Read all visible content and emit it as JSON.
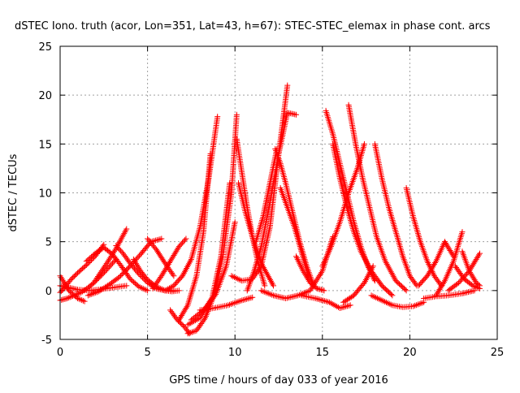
{
  "chart_data": {
    "type": "scatter",
    "title": "dSTEC Iono. truth (acor, Lon=351, Lat=43, h=67): STEC-STEC_elemax in phase cont. arcs",
    "xlabel": "GPS time / hours of day 033 of year 2016",
    "ylabel": "dSTEC  / TECUs",
    "xlim": [
      0,
      25
    ],
    "ylim": [
      -5,
      25
    ],
    "xticks": [
      0,
      5,
      10,
      15,
      20,
      25
    ],
    "yticks": [
      -5,
      0,
      5,
      10,
      15,
      20,
      25
    ],
    "grid": true,
    "marker": "+",
    "color": "#ff0000",
    "series": [
      {
        "x": [
          0.0,
          0.3,
          0.6,
          1.0,
          1.5,
          2.0,
          2.5
        ],
        "y": [
          -0.2,
          0.4,
          1.1,
          1.8,
          2.6,
          3.5,
          4.7
        ]
      },
      {
        "x": [
          0.0,
          0.5,
          1.0,
          1.4
        ],
        "y": [
          1.5,
          0.0,
          -0.8,
          -1.1
        ]
      },
      {
        "x": [
          0.0,
          0.4,
          0.8,
          1.2,
          1.6,
          2.0,
          2.6,
          3.2
        ],
        "y": [
          -1.0,
          -0.8,
          -0.5,
          -0.2,
          0.3,
          0.9,
          2.0,
          3.2
        ]
      },
      {
        "x": [
          0.0,
          0.5,
          1.0,
          1.6,
          2.2,
          3.0,
          3.8
        ],
        "y": [
          0.5,
          0.3,
          0.1,
          0.0,
          0.1,
          0.3,
          0.5
        ]
      },
      {
        "x": [
          1.5,
          2.0,
          2.5,
          3.0,
          3.5,
          4.0,
          4.5,
          5.0
        ],
        "y": [
          3.0,
          3.8,
          4.4,
          3.7,
          2.5,
          1.2,
          0.4,
          0.0
        ]
      },
      {
        "x": [
          2.0,
          2.6,
          3.2,
          3.8
        ],
        "y": [
          1.0,
          2.6,
          4.3,
          6.3
        ]
      },
      {
        "x": [
          3.2,
          3.6,
          4.0,
          4.5,
          5.0,
          5.5,
          6.0,
          6.5
        ],
        "y": [
          4.6,
          3.8,
          2.8,
          1.7,
          0.8,
          0.2,
          0.0,
          0.0
        ]
      },
      {
        "x": [
          1.6,
          2.2,
          2.8,
          3.4,
          4.0,
          4.6,
          5.2,
          5.8
        ],
        "y": [
          -0.5,
          -0.1,
          0.6,
          1.4,
          2.5,
          3.7,
          5.0,
          5.3
        ]
      },
      {
        "x": [
          4.2,
          4.6,
          5.0,
          5.5,
          6.0,
          6.4,
          6.8
        ],
        "y": [
          3.2,
          2.0,
          1.1,
          0.4,
          0.0,
          -0.1,
          0.0
        ]
      },
      {
        "x": [
          5.0,
          5.5,
          6.0,
          6.5
        ],
        "y": [
          5.3,
          4.2,
          2.8,
          1.5
        ]
      },
      {
        "x": [
          5.3,
          5.8,
          6.3,
          6.8,
          7.2
        ],
        "y": [
          0.2,
          1.5,
          3.0,
          4.5,
          5.3
        ]
      },
      {
        "x": [
          6.0,
          6.5,
          7.0,
          7.5,
          8.0,
          8.5,
          9.0
        ],
        "y": [
          0.0,
          0.5,
          1.5,
          3.2,
          6.5,
          11.5,
          17.8
        ]
      },
      {
        "x": [
          6.3,
          6.7,
          7.1,
          7.4
        ],
        "y": [
          -2.0,
          -3.0,
          -3.7,
          -4.4
        ]
      },
      {
        "x": [
          7.3,
          7.8,
          8.3,
          8.8,
          9.3,
          9.8,
          10.1
        ],
        "y": [
          -4.4,
          -4.1,
          -2.8,
          -0.5,
          3.5,
          10.0,
          18.0
        ]
      },
      {
        "x": [
          6.8,
          7.3,
          7.8,
          8.2,
          8.6
        ],
        "y": [
          -3.0,
          -1.5,
          1.5,
          6.0,
          14.0
        ]
      },
      {
        "x": [
          7.3,
          8.0,
          8.7,
          9.2,
          9.7
        ],
        "y": [
          -3.5,
          -2.8,
          -0.7,
          3.5,
          11.0
        ]
      },
      {
        "x": [
          7.5,
          8.2,
          8.9,
          9.5,
          10.0
        ],
        "y": [
          -3.0,
          -2.0,
          -0.4,
          2.5,
          7.0
        ]
      },
      {
        "x": [
          8.0,
          8.8,
          9.6,
          10.4,
          11.0
        ],
        "y": [
          -2.0,
          -1.8,
          -1.5,
          -1.0,
          -0.7
        ]
      },
      {
        "x": [
          10.1,
          10.4,
          10.7,
          11.0,
          11.3,
          11.7
        ],
        "y": [
          15.5,
          12.0,
          8.5,
          5.5,
          3.0,
          0.5
        ]
      },
      {
        "x": [
          10.2,
          10.6,
          11.0,
          11.5,
          12.2
        ],
        "y": [
          11.0,
          8.0,
          5.5,
          2.8,
          0.5
        ]
      },
      {
        "x": [
          9.8,
          10.4,
          11.0,
          11.5,
          12.0,
          12.5,
          13.0
        ],
        "y": [
          1.5,
          1.0,
          1.2,
          2.5,
          6.5,
          14.0,
          21.0
        ]
      },
      {
        "x": [
          10.7,
          11.1,
          11.5,
          12.0,
          12.5,
          13.0,
          13.5
        ],
        "y": [
          0.0,
          2.0,
          4.5,
          9.0,
          14.0,
          18.2,
          18.0
        ]
      },
      {
        "x": [
          11.2,
          11.6,
          12.0,
          12.4
        ],
        "y": [
          5.0,
          7.5,
          11.0,
          14.5
        ]
      },
      {
        "x": [
          12.3,
          12.6,
          12.9,
          13.3,
          13.7,
          14.1,
          14.5
        ],
        "y": [
          14.5,
          13.0,
          11.0,
          8.0,
          5.0,
          2.5,
          0.5
        ]
      },
      {
        "x": [
          12.6,
          13.0,
          13.4,
          13.8,
          14.2
        ],
        "y": [
          10.5,
          8.5,
          6.5,
          4.0,
          1.5
        ]
      },
      {
        "x": [
          13.5,
          13.9,
          14.3,
          14.7,
          15.1
        ],
        "y": [
          3.5,
          2.0,
          0.8,
          0.2,
          0.0
        ]
      },
      {
        "x": [
          11.5,
          12.2,
          12.9,
          13.6,
          14.3,
          15.0,
          15.6
        ],
        "y": [
          0.0,
          -0.5,
          -0.8,
          -0.5,
          0.0,
          2.0,
          5.5
        ]
      },
      {
        "x": [
          15.2,
          15.6,
          16.0,
          16.4,
          16.8,
          17.2,
          17.6,
          18.0
        ],
        "y": [
          18.4,
          16.0,
          13.0,
          10.0,
          7.0,
          4.5,
          2.5,
          1.0
        ]
      },
      {
        "x": [
          15.6,
          16.0,
          16.4,
          16.8,
          17.2,
          17.8,
          18.4,
          19.0
        ],
        "y": [
          15.0,
          11.5,
          8.5,
          6.0,
          4.0,
          2.0,
          0.5,
          -0.5
        ]
      },
      {
        "x": [
          16.5,
          16.9,
          17.3,
          17.7,
          18.1,
          18.6,
          19.2,
          19.8
        ],
        "y": [
          19.0,
          15.0,
          11.5,
          8.5,
          5.5,
          3.0,
          1.0,
          0.0
        ]
      },
      {
        "x": [
          18.0,
          18.4,
          18.8,
          19.2,
          19.6,
          20.0,
          20.4
        ],
        "y": [
          15.0,
          11.5,
          8.5,
          6.0,
          3.5,
          1.5,
          0.5
        ]
      },
      {
        "x": [
          13.8,
          14.6,
          15.4,
          16.0,
          16.6
        ],
        "y": [
          -0.5,
          -0.8,
          -1.2,
          -1.8,
          -1.5
        ]
      },
      {
        "x": [
          15.0,
          15.5,
          16.0,
          16.5,
          17.0,
          17.4
        ],
        "y": [
          2.5,
          4.5,
          7.0,
          10.0,
          12.5,
          15.0
        ]
      },
      {
        "x": [
          16.2,
          16.8,
          17.4,
          17.9
        ],
        "y": [
          -1.2,
          -0.5,
          0.8,
          2.5
        ]
      },
      {
        "x": [
          17.8,
          18.4,
          19.0,
          19.6,
          20.2,
          20.8
        ],
        "y": [
          -0.5,
          -1.0,
          -1.5,
          -1.7,
          -1.6,
          -1.2
        ]
      },
      {
        "x": [
          19.8,
          20.2,
          20.6,
          21.0,
          21.4,
          21.8
        ],
        "y": [
          10.5,
          7.5,
          5.0,
          3.0,
          1.5,
          0.5
        ]
      },
      {
        "x": [
          20.5,
          21.0,
          21.5,
          22.0,
          22.5
        ],
        "y": [
          0.5,
          1.5,
          3.0,
          5.0,
          3.5
        ]
      },
      {
        "x": [
          20.8,
          21.5,
          22.2,
          23.0,
          23.7
        ],
        "y": [
          -0.8,
          -0.6,
          -0.5,
          -0.3,
          0.0
        ]
      },
      {
        "x": [
          21.5,
          22.0,
          22.5,
          23.0
        ],
        "y": [
          -0.5,
          1.0,
          3.0,
          6.0
        ]
      },
      {
        "x": [
          22.2,
          22.8,
          23.4,
          24.0
        ],
        "y": [
          0.0,
          0.8,
          2.0,
          3.8
        ]
      },
      {
        "x": [
          22.6,
          23.1,
          23.6,
          24.0
        ],
        "y": [
          2.5,
          1.2,
          0.5,
          0.2
        ]
      },
      {
        "x": [
          23.0,
          23.4,
          23.8,
          24.0
        ],
        "y": [
          4.0,
          2.0,
          0.8,
          0.5
        ]
      }
    ]
  }
}
